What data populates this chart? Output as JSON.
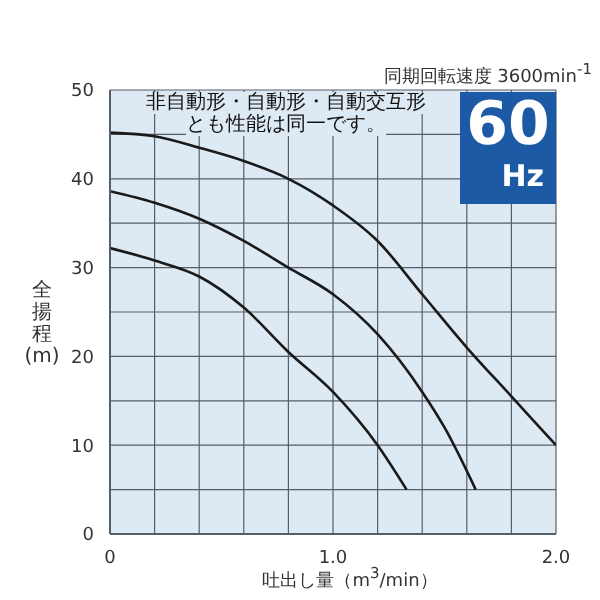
{
  "chart_data": {
    "type": "line",
    "title": "同期回転速度 3600min$^{-1}$",
    "xlabel": "吐出し量（m$^{3}$/min）",
    "ylabel": "全揚程(m)",
    "annotations": [
      "非自動形・自動形・自動交互形",
      "とも性能は同一です。",
      "60",
      "Hz"
    ],
    "series": [
      {
        "color": "#1a1a1a",
        "x": [
          0,
          0.2,
          0.4,
          0.6,
          0.8,
          1.0,
          1.2,
          1.4,
          1.6,
          1.8,
          2.0
        ],
        "values": [
          45.2,
          44.8,
          43.5,
          42,
          40,
          37,
          33,
          27,
          21,
          15.5,
          10
        ]
      },
      {
        "color": "#1a1a1a",
        "x": [
          0,
          0.2,
          0.4,
          0.6,
          0.8,
          1.0,
          1.2,
          1.4,
          1.5,
          1.64
        ],
        "values": [
          38.6,
          37.3,
          35.5,
          33,
          30,
          27,
          22.5,
          16,
          12,
          5
        ]
      },
      {
        "color": "#1a1a1a",
        "x": [
          0,
          0.2,
          0.4,
          0.6,
          0.8,
          1.0,
          1.2,
          1.33
        ],
        "values": [
          32.2,
          30.8,
          29,
          25.5,
          20.5,
          16,
          10,
          5
        ]
      }
    ],
    "xlim": [
      0,
      2
    ],
    "xticks": [
      0,
      {
        "value": 0.2,
        "label": null
      },
      {
        "value": 0.4,
        "label": null
      },
      {
        "value": 0.6,
        "label": null
      },
      {
        "value": 0.8,
        "label": null
      },
      {
        "value": 1,
        "label": "1.0"
      },
      {
        "value": 1.2,
        "label": null
      },
      {
        "value": 1.4,
        "label": null
      },
      {
        "value": 1.6,
        "label": null
      },
      {
        "value": 1.8,
        "label": null
      },
      {
        "value": 2,
        "label": "2.0"
      }
    ],
    "ylim": [
      0,
      50
    ],
    "yticks": [
      0,
      {
        "value": 5,
        "label": null
      },
      10,
      {
        "value": 15,
        "label": null
      },
      20,
      {
        "value": 25,
        "label": null
      },
      30,
      {
        "value": 35,
        "label": null
      },
      40,
      {
        "value": 45,
        "label": null
      },
      50
    ],
    "grid": true,
    "legend": false,
    "marker": "none",
    "line_style": "solid"
  }
}
